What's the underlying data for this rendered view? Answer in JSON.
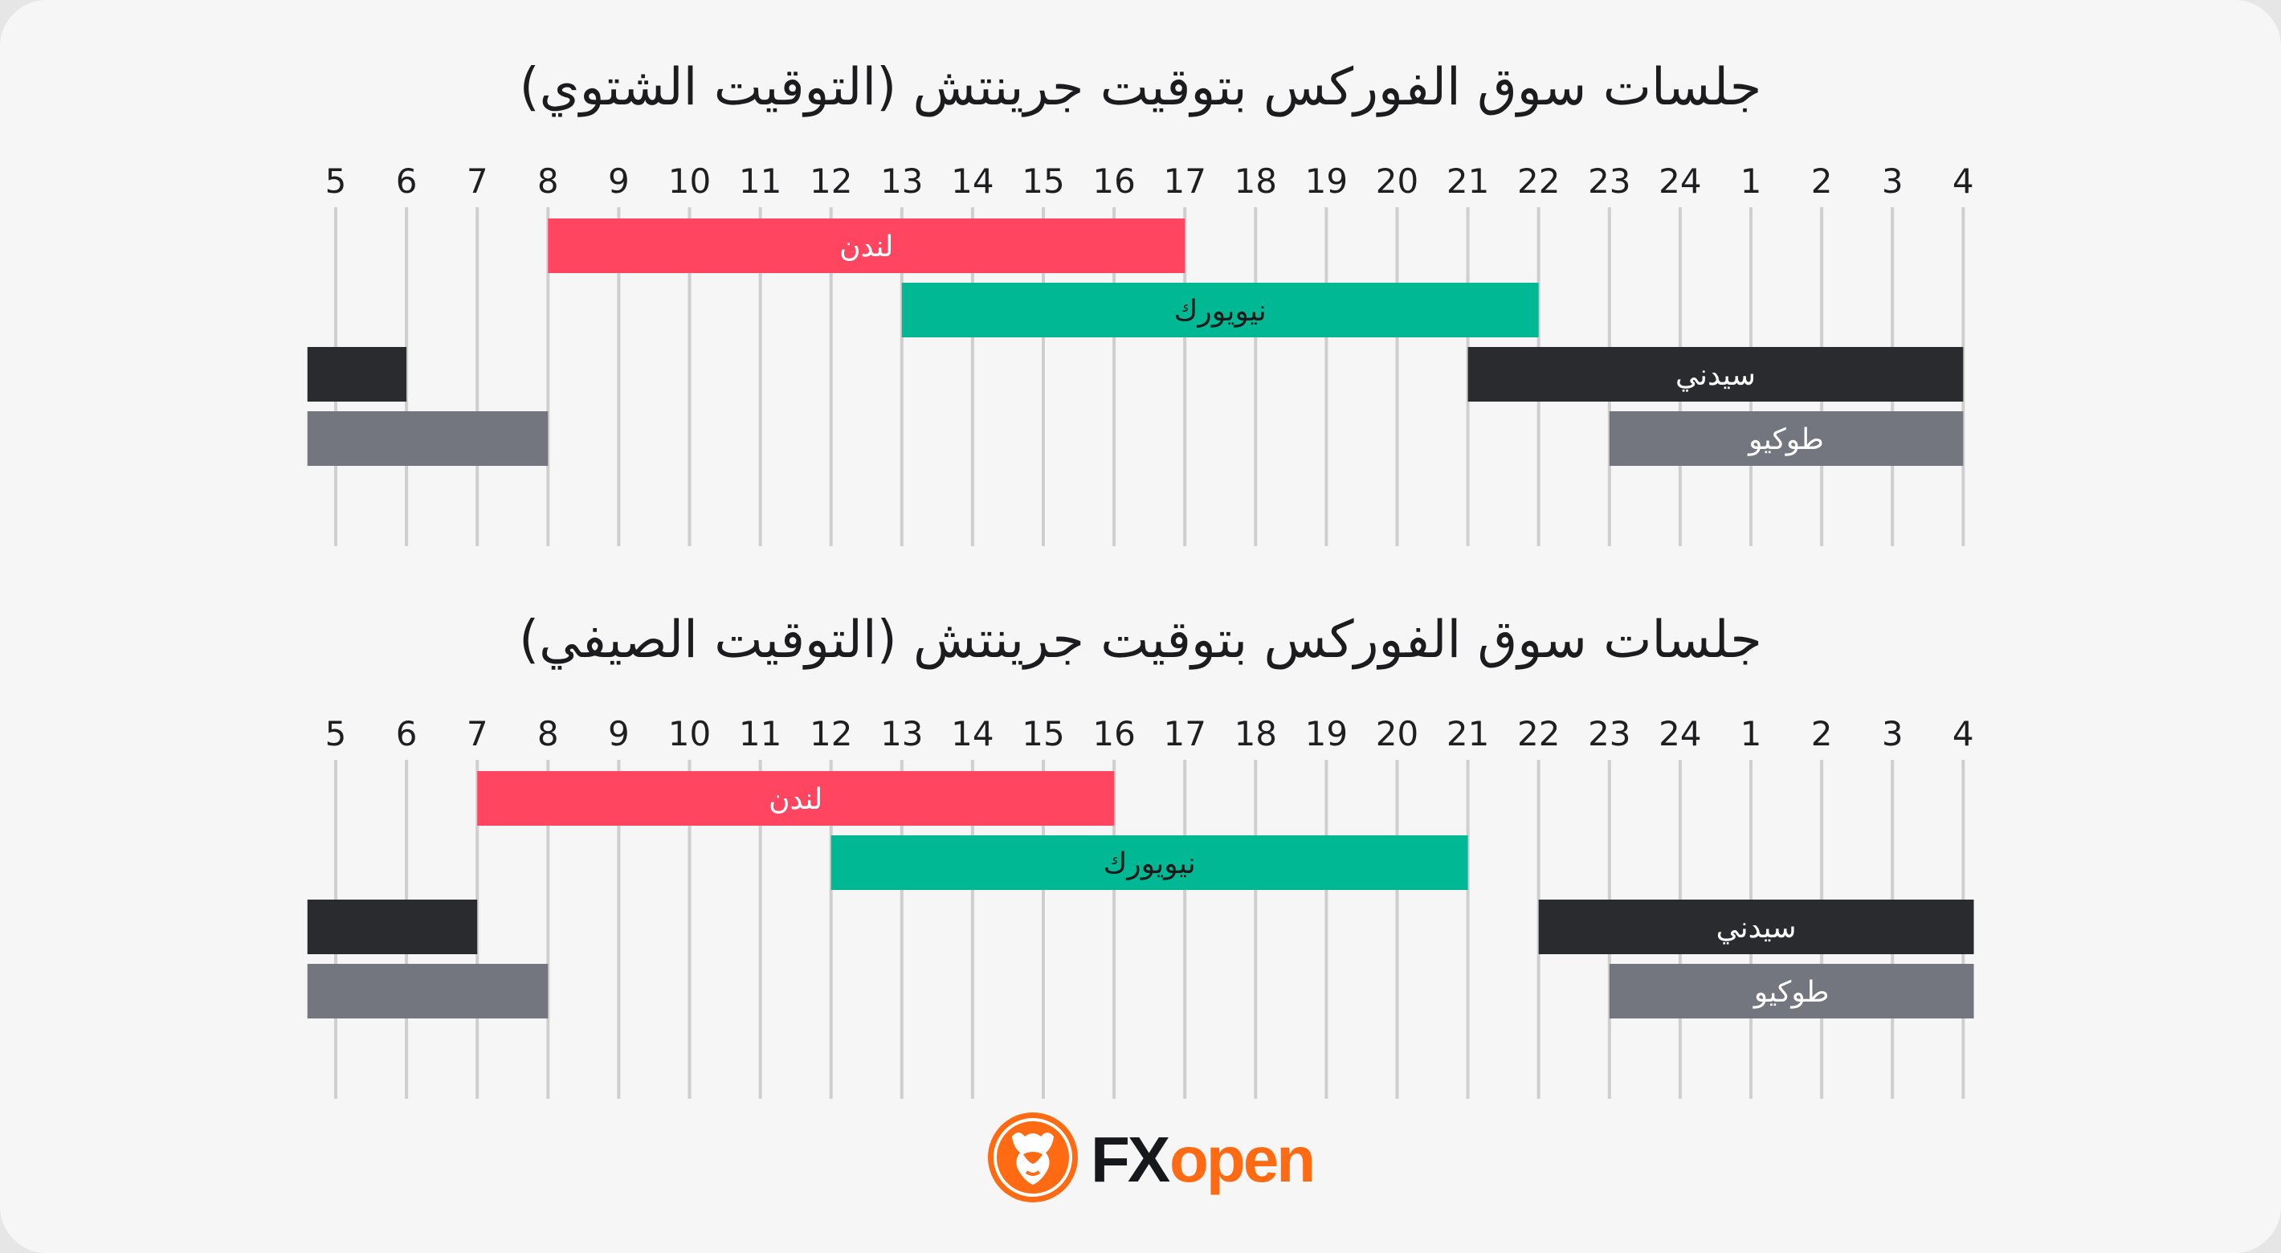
{
  "colors": {
    "london": "#ff4560",
    "newyork": "#00b894",
    "sydney": "#2a2b2f",
    "tokyo": "#73767f",
    "grid": "#cfcfcf",
    "brand_orange": "#ff6a13",
    "brand_dark": "#17181c"
  },
  "brand": {
    "name_fx": "FX",
    "name_open": "open",
    "logo_icon": "bull-head-icon"
  },
  "chart_data": [
    {
      "type": "gantt",
      "title": "جلسات سوق الفوركس بتوقيت جرينتش (التوقيت الشتوي)",
      "ticks": [
        "5",
        "6",
        "7",
        "8",
        "9",
        "10",
        "11",
        "12",
        "13",
        "14",
        "15",
        "16",
        "17",
        "18",
        "19",
        "20",
        "21",
        "22",
        "23",
        "24",
        "1",
        "2",
        "3",
        "4"
      ],
      "grid": true,
      "sessions": [
        {
          "key": "london",
          "label": "لندن",
          "color": "#ff4560",
          "segments": [
            [
              8,
              17
            ]
          ]
        },
        {
          "key": "newyork",
          "label": "نيويورك",
          "color": "#00b894",
          "segments": [
            [
              13,
              22
            ]
          ]
        },
        {
          "key": "sydney",
          "label": "سيدني",
          "color": "#2a2b2f",
          "segments": [
            [
              21,
              28
            ],
            [
              4.6,
              6
            ]
          ]
        },
        {
          "key": "tokyo",
          "label": "طوكيو",
          "color": "#73767f",
          "segments": [
            [
              23,
              28
            ],
            [
              4.6,
              8
            ]
          ]
        }
      ]
    },
    {
      "type": "gantt",
      "title": "جلسات سوق الفوركس بتوقيت جرينتش (التوقيت الصيفي)",
      "ticks": [
        "5",
        "6",
        "7",
        "8",
        "9",
        "10",
        "11",
        "12",
        "13",
        "14",
        "15",
        "16",
        "17",
        "18",
        "19",
        "20",
        "21",
        "22",
        "23",
        "24",
        "1",
        "2",
        "3",
        "4"
      ],
      "grid": true,
      "sessions": [
        {
          "key": "london",
          "label": "لندن",
          "color": "#ff4560",
          "segments": [
            [
              7,
              16
            ]
          ]
        },
        {
          "key": "newyork",
          "label": "نيويورك",
          "color": "#00b894",
          "segments": [
            [
              12,
              21
            ]
          ]
        },
        {
          "key": "sydney",
          "label": "سيدني",
          "color": "#2a2b2f",
          "segments": [
            [
              22,
              28.15
            ],
            [
              4.6,
              7
            ]
          ]
        },
        {
          "key": "tokyo",
          "label": "طوكيو",
          "color": "#73767f",
          "segments": [
            [
              23,
              28.15
            ],
            [
              4.6,
              8
            ]
          ]
        }
      ]
    }
  ]
}
